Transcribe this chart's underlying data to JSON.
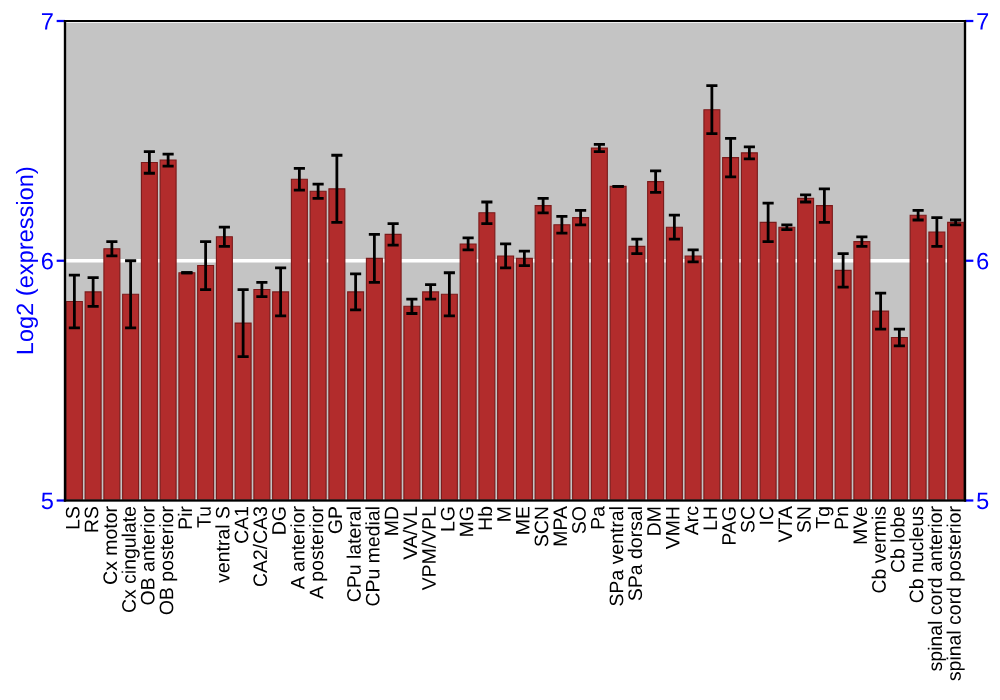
{
  "chart_data": {
    "type": "bar",
    "ylabel": "Log2 (expression)",
    "categories": [
      "LS",
      "RS",
      "Cx motor",
      "Cx cingulate",
      "OB anterior",
      "OB posterior",
      "Pir",
      "Tu",
      "ventral S",
      "CA1",
      "CA2/CA3",
      "DG",
      "A anterior",
      "A posterior",
      "GP",
      "CPu lateral",
      "CPu medial",
      "MD",
      "VA/VL",
      "VPM/VPL",
      "LG",
      "MG",
      "Hb",
      "M",
      "ME",
      "SCN",
      "MPA",
      "SO",
      "Pa",
      "SPa ventral",
      "SPa dorsal",
      "DM",
      "VMH",
      "Arc",
      "LH",
      "PAG",
      "SC",
      "IC",
      "VTA",
      "SN",
      "Tg",
      "Pn",
      "MVe",
      "Cb vermis",
      "Cb lobe",
      "Cb nucleus",
      "spinal cord anterior",
      "spinal cord posterior"
    ],
    "values": [
      5.83,
      5.87,
      6.05,
      5.86,
      6.41,
      6.42,
      5.95,
      5.98,
      6.1,
      5.74,
      5.88,
      5.87,
      6.34,
      6.29,
      6.3,
      5.87,
      6.01,
      6.11,
      5.81,
      5.87,
      5.86,
      6.07,
      6.2,
      6.02,
      6.01,
      6.23,
      6.15,
      6.18,
      6.47,
      6.31,
      6.06,
      6.33,
      6.14,
      6.02,
      6.63,
      6.43,
      6.45,
      6.16,
      6.14,
      6.26,
      6.23,
      5.96,
      6.08,
      5.79,
      5.68,
      6.19,
      6.12,
      6.16
    ],
    "errors": [
      0.11,
      0.06,
      0.03,
      0.14,
      0.045,
      0.025,
      null,
      0.1,
      0.04,
      0.14,
      0.03,
      0.1,
      0.045,
      0.03,
      0.14,
      0.075,
      0.1,
      0.045,
      0.03,
      0.03,
      0.09,
      0.025,
      0.045,
      0.05,
      0.03,
      0.03,
      0.035,
      0.03,
      0.015,
      null,
      0.03,
      0.045,
      0.05,
      0.025,
      0.1,
      0.08,
      0.025,
      0.08,
      0.01,
      0.015,
      0.07,
      0.07,
      0.02,
      0.075,
      0.035,
      0.02,
      0.06,
      0.01
    ],
    "color": "#b22c2c",
    "ylim": [
      5,
      7
    ],
    "yticks": [
      5,
      6,
      7
    ],
    "y2lim": [
      5,
      7
    ],
    "y2ticks": [
      5,
      6,
      7
    ],
    "grid": "y"
  }
}
